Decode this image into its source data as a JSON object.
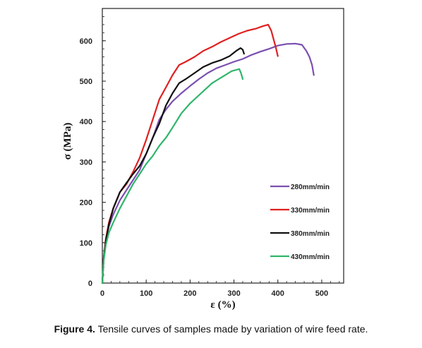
{
  "caption": {
    "label": "Figure 4.",
    "text": "Tensile curves of samples made by variation of wire feed rate."
  },
  "chart_data": {
    "type": "line",
    "xlabel": "ε (%)",
    "ylabel": "σ (MPa)",
    "xlim": [
      0,
      550
    ],
    "ylim": [
      0,
      680
    ],
    "xticks": [
      0,
      100,
      200,
      300,
      400,
      500
    ],
    "yticks": [
      0,
      100,
      200,
      300,
      400,
      500,
      600
    ],
    "grid": false,
    "legend_position": "lower-right",
    "series": [
      {
        "name": "280mm/min",
        "color": "#7b4fb0",
        "x": [
          0,
          3,
          8,
          15,
          25,
          40,
          55,
          70,
          85,
          100,
          115,
          130,
          145,
          160,
          180,
          200,
          220,
          240,
          260,
          280,
          300,
          320,
          340,
          360,
          380,
          400,
          420,
          440,
          455,
          465,
          472,
          478,
          482
        ],
        "y": [
          0,
          60,
          110,
          140,
          170,
          205,
          230,
          255,
          280,
          320,
          360,
          405,
          430,
          450,
          470,
          488,
          505,
          520,
          532,
          540,
          548,
          555,
          565,
          573,
          580,
          588,
          592,
          593,
          590,
          575,
          560,
          540,
          515
        ]
      },
      {
        "name": "330mm/min",
        "color": "#e02020",
        "x": [
          0,
          3,
          8,
          15,
          25,
          40,
          55,
          70,
          85,
          100,
          115,
          130,
          145,
          160,
          175,
          190,
          210,
          230,
          250,
          270,
          290,
          310,
          330,
          350,
          365,
          378,
          385,
          390,
          395,
          400
        ],
        "y": [
          0,
          60,
          110,
          150,
          185,
          225,
          245,
          275,
          310,
          355,
          405,
          455,
          485,
          515,
          540,
          548,
          560,
          575,
          585,
          597,
          607,
          617,
          625,
          630,
          636,
          640,
          625,
          605,
          585,
          562
        ]
      },
      {
        "name": "380mm/min",
        "color": "#111111",
        "x": [
          0,
          3,
          8,
          15,
          25,
          40,
          55,
          70,
          85,
          100,
          115,
          130,
          145,
          160,
          175,
          190,
          210,
          230,
          250,
          270,
          290,
          305,
          315,
          320,
          323
        ],
        "y": [
          0,
          60,
          105,
          145,
          185,
          225,
          248,
          270,
          290,
          320,
          360,
          395,
          440,
          470,
          495,
          505,
          520,
          535,
          545,
          552,
          562,
          575,
          582,
          578,
          568
        ]
      },
      {
        "name": "430mm/min",
        "color": "#2fb56a",
        "x": [
          0,
          3,
          8,
          15,
          25,
          40,
          55,
          70,
          85,
          100,
          115,
          130,
          145,
          160,
          180,
          200,
          220,
          235,
          250,
          265,
          280,
          295,
          305,
          312,
          316,
          320
        ],
        "y": [
          0,
          55,
          95,
          125,
          150,
          185,
          215,
          245,
          270,
          295,
          315,
          340,
          360,
          385,
          420,
          445,
          465,
          480,
          495,
          505,
          515,
          525,
          528,
          530,
          520,
          505
        ]
      }
    ]
  }
}
